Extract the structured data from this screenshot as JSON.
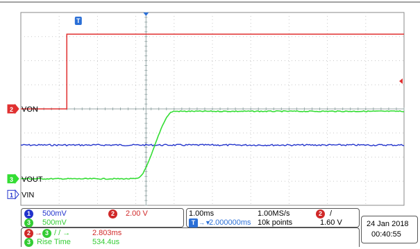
{
  "colors": {
    "ch1": "#2233cc",
    "ch2": "#e03030",
    "ch3": "#33dd33",
    "trigger": "#2b6fd6",
    "grid": "#c8c8c8",
    "frame": "#888888",
    "ch2_text": "#d02828",
    "ch3_text": "#33cc33"
  },
  "markers": {
    "trigger_top": "T",
    "ch2_num": "2",
    "ch2_label": "VON",
    "ch3_num": "3",
    "ch3_label": "VOUT",
    "ch1_num": "1",
    "ch1_label": "VIN"
  },
  "channel_box": {
    "ch1_num": "1",
    "ch1_scale": "500mV",
    "ch2_num": "2",
    "ch2_scale": "2.00 V",
    "ch3_num": "3",
    "ch3_scale": "500mV"
  },
  "timebase_box": {
    "time_per_div": "1.00ms",
    "sample_rate": "1.00MS/s",
    "trigger_icon": "T",
    "arrow": "→▼",
    "trigger_position": "2.000000ms",
    "record_length": "10k points",
    "trigger_channel": "2",
    "trigger_slope": "/",
    "trigger_level": "1.60 V"
  },
  "measurements": {
    "delay_from": "2",
    "delay_to": "3",
    "delay_edges": "/ / →",
    "delay_value": "2.803ms",
    "rise_channel": "3",
    "rise_label": "Rise Time",
    "rise_value": "534.4us"
  },
  "datetime": {
    "date": "24 Jan  2018",
    "time": "00:40:55"
  },
  "waveforms": {
    "time_ms": [
      0,
      1,
      2,
      2.5,
      3,
      3.267,
      3.5,
      4,
      5,
      6,
      7,
      8,
      9,
      10
    ],
    "trigger_time_ms": 3.267,
    "ch2_edge_ms": 1.2,
    "ch2_low_div": 4.0,
    "ch2_high_div": 7.1,
    "ch1_level_div": 2.5,
    "ch3_low_div": 1.1,
    "ch3_high_div": 3.9,
    "ch3_rise_start_ms": 3.0,
    "ch3_rise_end_ms": 4.0
  }
}
